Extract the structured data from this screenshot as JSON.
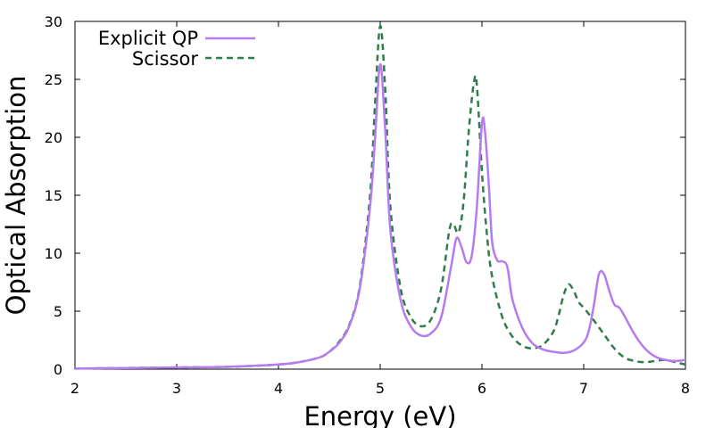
{
  "chart_data": {
    "type": "line",
    "xlabel": "Energy (eV)",
    "ylabel": "Optical Absorption",
    "xlim": [
      2,
      8
    ],
    "ylim": [
      0,
      30
    ],
    "x_ticks": [
      2,
      3,
      4,
      5,
      6,
      7,
      8
    ],
    "y_ticks": [
      0,
      5,
      10,
      15,
      20,
      25,
      30
    ],
    "grid": false,
    "legend_position": "top-left",
    "series": [
      {
        "name": "Explicit QP",
        "color": "#b57cf0",
        "style": "solid",
        "x": [
          2.0,
          2.5,
          3.0,
          3.5,
          4.0,
          4.2,
          4.4,
          4.5,
          4.6,
          4.7,
          4.8,
          4.9,
          4.95,
          5.0,
          5.05,
          5.1,
          5.2,
          5.3,
          5.4,
          5.5,
          5.6,
          5.7,
          5.75,
          5.8,
          5.85,
          5.9,
          5.95,
          6.0,
          6.03,
          6.07,
          6.1,
          6.15,
          6.2,
          6.25,
          6.3,
          6.4,
          6.5,
          6.6,
          6.7,
          6.8,
          6.9,
          7.0,
          7.05,
          7.1,
          7.15,
          7.2,
          7.25,
          7.3,
          7.35,
          7.4,
          7.5,
          7.6,
          7.7,
          7.8,
          7.9,
          8.0
        ],
        "y": [
          0.05,
          0.1,
          0.15,
          0.2,
          0.4,
          0.6,
          1.0,
          1.5,
          2.3,
          3.8,
          7.0,
          14.0,
          20.0,
          26.3,
          20.5,
          12.0,
          6.0,
          3.7,
          2.9,
          3.1,
          4.5,
          9.0,
          11.3,
          10.5,
          9.2,
          9.8,
          14.0,
          21.2,
          20.5,
          15.5,
          11.0,
          9.4,
          9.3,
          8.8,
          6.0,
          3.5,
          2.2,
          1.7,
          1.5,
          1.4,
          1.6,
          2.3,
          3.3,
          5.5,
          8.2,
          8.2,
          6.8,
          5.6,
          5.3,
          4.6,
          3.0,
          1.8,
          1.1,
          0.8,
          0.7,
          0.8
        ]
      },
      {
        "name": "Scissor",
        "color": "#2e7d4b",
        "style": "dashed",
        "x": [
          2.0,
          2.5,
          3.0,
          3.5,
          4.0,
          4.2,
          4.4,
          4.5,
          4.6,
          4.7,
          4.8,
          4.9,
          4.95,
          5.0,
          5.05,
          5.1,
          5.2,
          5.3,
          5.4,
          5.5,
          5.6,
          5.68,
          5.72,
          5.77,
          5.82,
          5.87,
          5.92,
          5.95,
          6.0,
          6.05,
          6.1,
          6.2,
          6.3,
          6.4,
          6.5,
          6.6,
          6.7,
          6.75,
          6.8,
          6.85,
          6.9,
          6.95,
          7.0,
          7.1,
          7.2,
          7.3,
          7.4,
          7.5,
          7.6,
          7.7,
          7.8,
          7.9,
          8.0
        ],
        "y": [
          0.05,
          0.1,
          0.15,
          0.2,
          0.4,
          0.6,
          1.0,
          1.5,
          2.4,
          3.9,
          7.2,
          15.0,
          23.0,
          29.6,
          24.0,
          14.0,
          7.0,
          4.5,
          3.7,
          4.3,
          7.0,
          12.0,
          12.5,
          11.8,
          14.5,
          20.5,
          24.7,
          24.5,
          17.0,
          11.5,
          8.0,
          4.5,
          2.8,
          2.0,
          1.8,
          2.1,
          3.2,
          4.5,
          6.3,
          7.3,
          6.8,
          5.8,
          5.3,
          4.2,
          3.0,
          1.8,
          1.0,
          0.7,
          0.6,
          0.7,
          0.8,
          0.6,
          0.4
        ]
      }
    ]
  }
}
